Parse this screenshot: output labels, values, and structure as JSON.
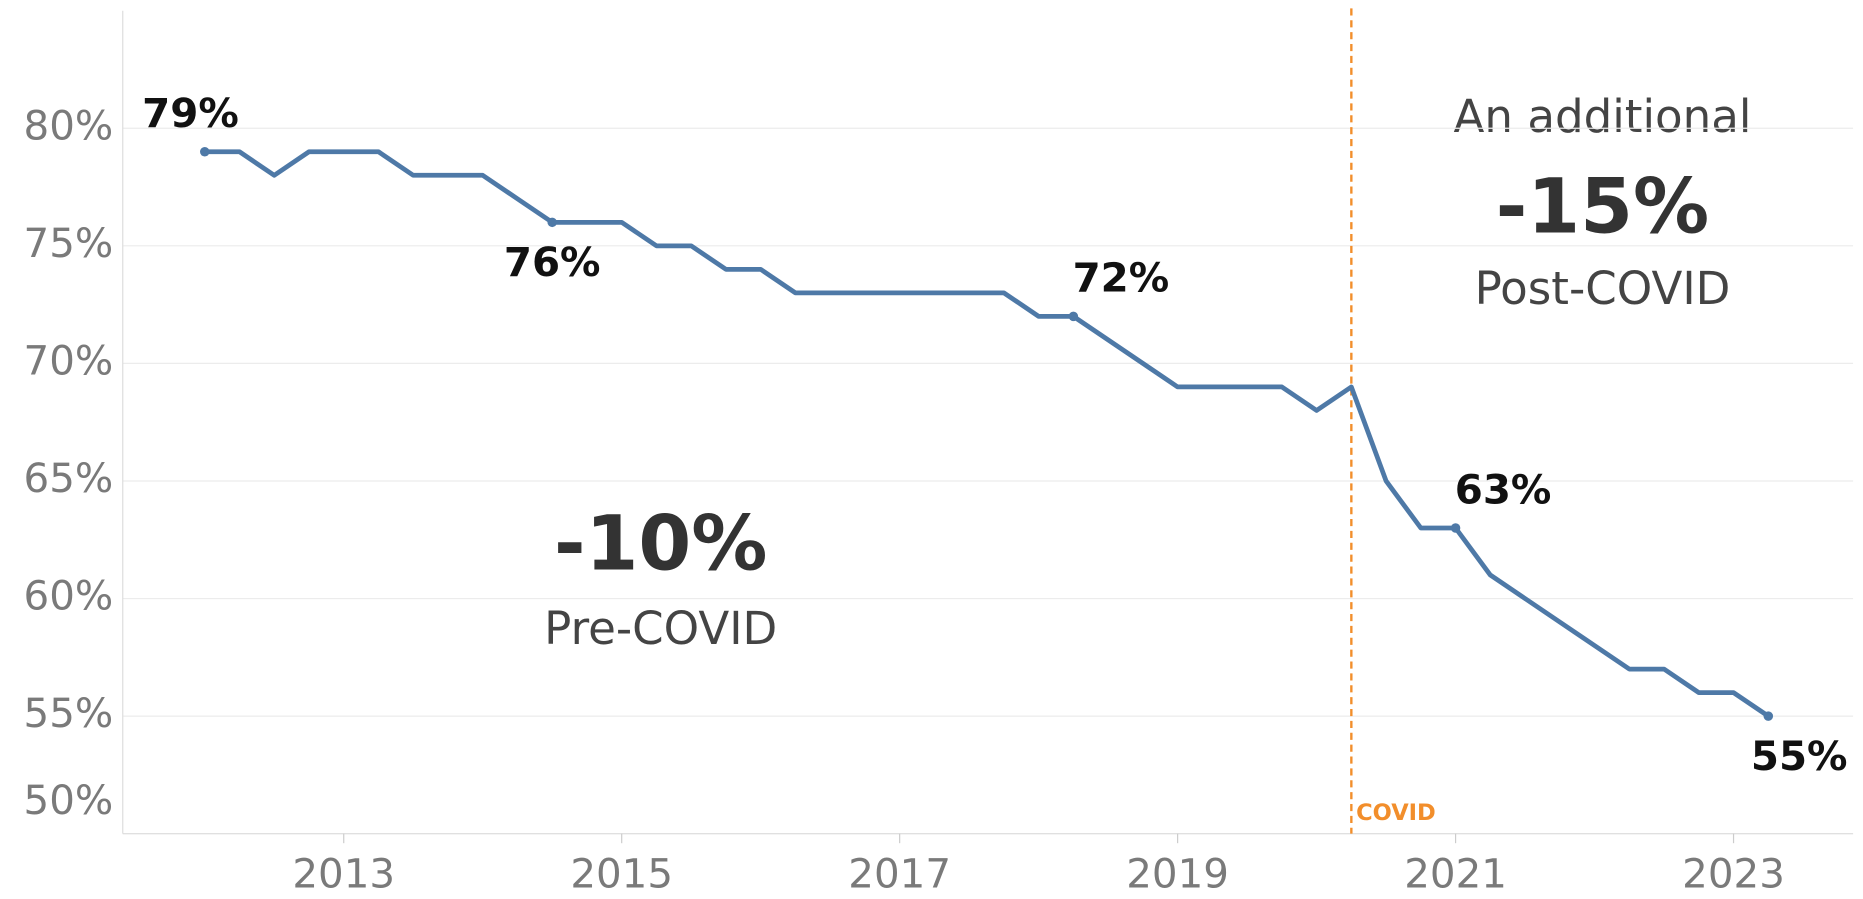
{
  "chart_data": {
    "type": "line",
    "x": [
      2012,
      2012.25,
      2012.5,
      2012.75,
      2013,
      2013.25,
      2013.5,
      2013.75,
      2014,
      2014.25,
      2014.5,
      2014.75,
      2015,
      2015.25,
      2015.5,
      2015.75,
      2016,
      2016.25,
      2016.5,
      2016.75,
      2017,
      2017.25,
      2017.5,
      2017.75,
      2018,
      2018.25,
      2018.5,
      2018.75,
      2019,
      2019.25,
      2019.5,
      2019.75,
      2020,
      2020.25,
      2020.5,
      2020.75,
      2021,
      2021.25,
      2021.5,
      2021.75,
      2022,
      2022.25,
      2022.5,
      2022.75,
      2023,
      2023.25
    ],
    "series": [
      {
        "color": "#4e79a7",
        "values": [
          79,
          79,
          78,
          79,
          79,
          79,
          78,
          78,
          78,
          77,
          76,
          76,
          76,
          75,
          75,
          74,
          74,
          73,
          73,
          73,
          73,
          73,
          73,
          73,
          72,
          72,
          71,
          70,
          69,
          69,
          69,
          69,
          68,
          69,
          65,
          63,
          63,
          61,
          60,
          59,
          58,
          57,
          57,
          56,
          56,
          55
        ],
        "value_labels": [
          "79%",
          null,
          null,
          null,
          null,
          null,
          null,
          null,
          null,
          null,
          "76%",
          null,
          null,
          null,
          null,
          null,
          null,
          null,
          null,
          null,
          null,
          null,
          null,
          null,
          null,
          "72%",
          null,
          null,
          null,
          null,
          null,
          null,
          null,
          null,
          null,
          null,
          "63%",
          null,
          null,
          null,
          null,
          null,
          null,
          null,
          null,
          "55%"
        ]
      }
    ],
    "xlim": [
      2011.41,
      2023.86
    ],
    "xticks": [
      2013,
      2015,
      2017,
      2019,
      2021,
      2023
    ],
    "ylim": [
      50,
      85
    ],
    "yticks": [
      {
        "value": 50,
        "label": "50%"
      },
      {
        "value": 55,
        "label": "55%"
      },
      {
        "value": 60,
        "label": "60%"
      },
      {
        "value": 65,
        "label": "65%"
      },
      {
        "value": 70,
        "label": "70%"
      },
      {
        "value": 75,
        "label": "75%"
      },
      {
        "value": 80,
        "label": "80%"
      }
    ],
    "grid": true,
    "reference_line": {
      "x": 2020.25,
      "label": "COVID",
      "color": "#f28e2b"
    },
    "annotations": {
      "post_intro": "An additional",
      "post_value": "-15%",
      "post_label": "Post-COVID",
      "pre_value": "-10%",
      "pre_label": "Pre-COVID"
    }
  }
}
